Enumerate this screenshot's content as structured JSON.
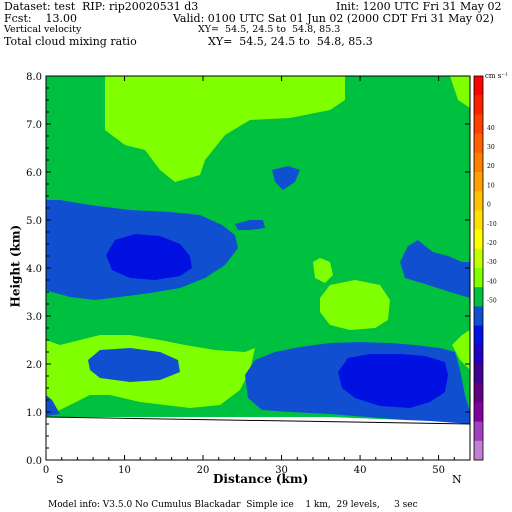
{
  "header": {
    "line1_left": "Dataset: test  RIP: rip20020531 d3",
    "line1_right": "Init: 1200 UTC Fri 31 May 02",
    "line2_left": "Fcst:    13.00",
    "line2_right": "Valid: 0100 UTC Sat 01 Jun 02 (2000 CDT Fri 31 May 02)",
    "line3_left": "Vertical velocity",
    "line3_right": "XY=  54.5, 24.5 to  54.8, 85.3",
    "line4_left": "Total cloud mixing ratio",
    "line4_right": "XY=  54.5, 24.5 to  54.8, 85.3"
  },
  "footer": {
    "model_info": "Model info: V3.5.0 No Cumulus Blackadar  Simple ice    1 km,  29 levels,     3 sec"
  },
  "chart_data": {
    "type": "heatmap",
    "xlabel": "Distance (km)",
    "ylabel": "Height (km)",
    "xlim": [
      0,
      54
    ],
    "ylim": [
      0,
      8
    ],
    "x_ticks": [
      0,
      10,
      20,
      30,
      40,
      50
    ],
    "y_ticks": [
      "0.0",
      "1.0",
      "2.0",
      "3.0",
      "4.0",
      "5.0",
      "6.0",
      "7.0",
      "8.0"
    ],
    "x_end_labels": {
      "left": "S",
      "right": "N"
    },
    "colorbar": {
      "unit": "cm s⁻¹",
      "tick_labels": [
        "40",
        "30",
        "20",
        "10",
        "0",
        "-10",
        "-20",
        "-30",
        "-40",
        "-50"
      ],
      "colors": [
        "#ff0000",
        "#ff2000",
        "#ff4000",
        "#ff6000",
        "#ff8000",
        "#ffa000",
        "#ffc000",
        "#ffe000",
        "#ffff00",
        "#c0ff00",
        "#80ff00",
        "#00c040",
        "#1050d0",
        "#0010e0",
        "#2000c0",
        "#400090",
        "#600080",
        "#8000a0",
        "#a040c0",
        "#c080d0"
      ]
    },
    "regions": [
      {
        "fill": "#00c040",
        "desc": "background -10 to 0"
      },
      {
        "fill": "#80ff00",
        "desc": "0 to 10 upper"
      },
      {
        "fill": "#1050d0",
        "desc": "-20 to -10"
      },
      {
        "fill": "#0010e0",
        "desc": "-30 to -20"
      }
    ],
    "terrain_height_km": 0.9
  }
}
